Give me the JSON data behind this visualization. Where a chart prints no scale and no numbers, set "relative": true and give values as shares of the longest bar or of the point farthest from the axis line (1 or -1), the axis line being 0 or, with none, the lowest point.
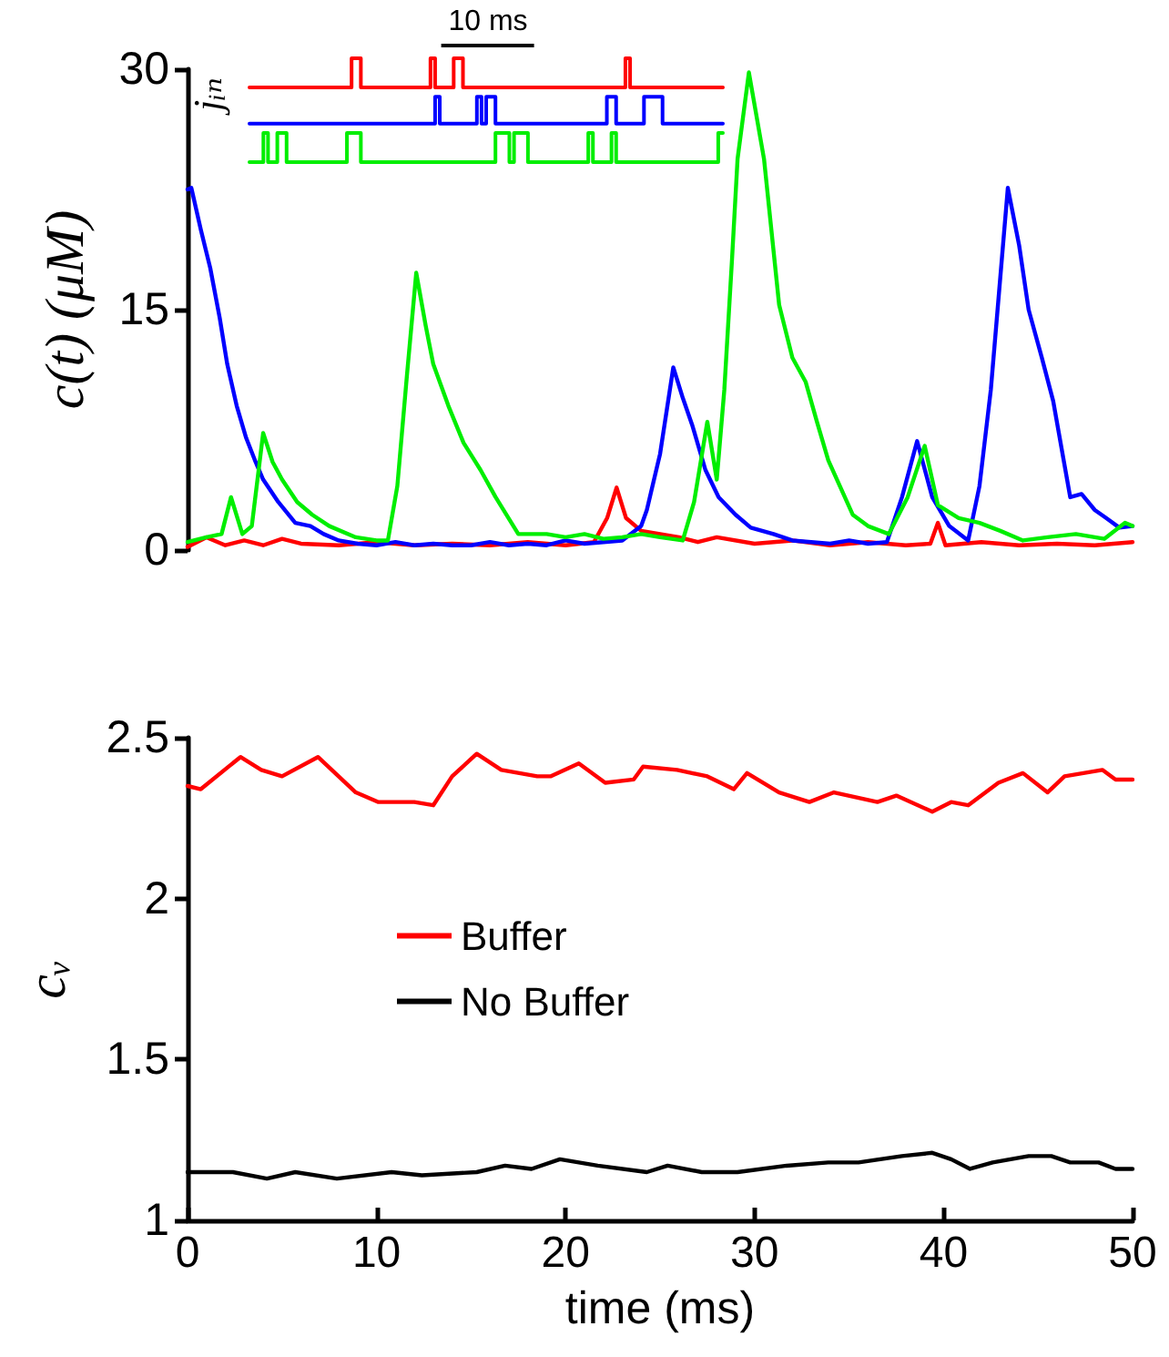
{
  "chart_data": [
    {
      "type": "line",
      "ylabel": "c(t) (μM)",
      "xlim": [
        0,
        50
      ],
      "ylim": [
        0,
        30
      ],
      "yticks": [
        0,
        15,
        30
      ],
      "tick_labels": "y",
      "marker": "none",
      "series": [
        {
          "color": "#ff0000",
          "x": [
            0,
            1,
            2,
            3,
            4,
            5,
            6,
            8,
            10,
            12,
            14,
            16,
            18,
            20,
            21.5,
            22.2,
            22.7,
            23.2,
            24,
            25,
            26,
            27,
            28,
            30,
            32,
            34,
            36,
            38,
            39.3,
            39.7,
            40.1,
            42,
            44,
            46,
            48,
            50
          ],
          "values": [
            0.2,
            0.8,
            0.3,
            0.6,
            0.3,
            0.7,
            0.4,
            0.3,
            0.5,
            0.3,
            0.4,
            0.3,
            0.5,
            0.3,
            0.5,
            2,
            3.9,
            2,
            1.2,
            1,
            0.8,
            0.5,
            0.8,
            0.4,
            0.6,
            0.3,
            0.5,
            0.3,
            0.4,
            1.7,
            0.3,
            0.5,
            0.3,
            0.4,
            0.3,
            0.5
          ]
        },
        {
          "color": "#0000ff",
          "x": [
            0,
            0.2,
            0.7,
            1.2,
            1.7,
            2.1,
            2.6,
            3.1,
            3.6,
            4,
            4.8,
            5.7,
            6.5,
            7.2,
            8,
            9,
            10,
            11,
            12,
            13,
            14,
            15,
            16,
            17,
            18,
            19,
            20,
            21,
            22,
            23,
            24,
            24.3,
            25,
            25.7,
            26.2,
            26.7,
            27.4,
            28.1,
            29,
            29.8,
            31,
            32,
            33,
            34,
            35,
            36,
            37,
            37.8,
            38.6,
            39.4,
            40.3,
            41.3,
            41.9,
            42.5,
            43,
            43.4,
            44,
            44.5,
            45.2,
            45.8,
            46.7,
            47.3,
            48,
            48.6,
            49.3,
            50
          ],
          "values": [
            22.5,
            22.6,
            20,
            17.6,
            14.5,
            11.6,
            9,
            7,
            5.5,
            4.4,
            3,
            1.7,
            1.5,
            1,
            0.6,
            0.4,
            0.3,
            0.5,
            0.3,
            0.4,
            0.3,
            0.3,
            0.5,
            0.3,
            0.4,
            0.3,
            0.6,
            0.4,
            0.5,
            0.6,
            1.5,
            2.5,
            6,
            11.4,
            9.5,
            7.8,
            5,
            3.3,
            2.2,
            1.4,
            1,
            0.6,
            0.5,
            0.4,
            0.6,
            0.4,
            0.5,
            3.3,
            6.8,
            3.3,
            1.5,
            0.6,
            4,
            10,
            17,
            22.6,
            19,
            15,
            12,
            9.3,
            3.3,
            3.5,
            2.5,
            2,
            1.4,
            1.5
          ]
        },
        {
          "color": "#00ee00",
          "x": [
            0,
            1,
            1.8,
            2.3,
            2.9,
            3.4,
            4,
            4.5,
            5,
            5.8,
            6.6,
            7.5,
            8.9,
            10,
            10.6,
            11.1,
            11.6,
            12.1,
            12.6,
            13,
            13.8,
            14.6,
            15.5,
            16.3,
            17.5,
            19,
            20,
            21,
            22,
            23,
            24,
            25,
            26.2,
            26.8,
            27.5,
            28,
            28.4,
            28.8,
            29.1,
            29.7,
            30.5,
            31.3,
            32,
            32.7,
            33.3,
            33.9,
            35.2,
            36,
            37.1,
            38.1,
            39,
            39.7,
            40.8,
            41.9,
            43,
            44.2,
            45.5,
            47,
            48.5,
            49.6,
            50
          ],
          "values": [
            0.5,
            0.8,
            1,
            3.3,
            1,
            1.5,
            7.3,
            5.5,
            4.4,
            3,
            2.2,
            1.5,
            0.8,
            0.6,
            0.6,
            4,
            10.8,
            17.3,
            14,
            11.6,
            9,
            6.7,
            5,
            3.3,
            1,
            1,
            0.8,
            1,
            0.7,
            0.8,
            1,
            0.8,
            0.6,
            3,
            8,
            4.4,
            10,
            18,
            24.4,
            29.8,
            24.4,
            15.3,
            12,
            10.5,
            8,
            5.6,
            2.2,
            1.5,
            1,
            3.3,
            6.5,
            2.8,
            2,
            1.7,
            1.2,
            0.6,
            0.8,
            1,
            0.7,
            1.7,
            1.5
          ]
        }
      ]
    },
    {
      "type": "step",
      "ylabel": "jᵢₙ",
      "relative": true,
      "tick_labels": false,
      "marker": "none",
      "annotations": [
        "10 ms"
      ],
      "categories": [
        null,
        null,
        null,
        null,
        null,
        null,
        null,
        null,
        null,
        null,
        null,
        null,
        null,
        null,
        null,
        null,
        null,
        null,
        null,
        null,
        null,
        null,
        null,
        null,
        null,
        null,
        null,
        null,
        null,
        null,
        null,
        null,
        null,
        null,
        null,
        null,
        null,
        null,
        null,
        null,
        null,
        null,
        null,
        null,
        null,
        null,
        null,
        null,
        null,
        null,
        null,
        null,
        null,
        null,
        null,
        null,
        null,
        null,
        null,
        null,
        null,
        null,
        null,
        null,
        null,
        null,
        null,
        null,
        null,
        null,
        null,
        null,
        null,
        null,
        null,
        null,
        null,
        null,
        null,
        null,
        null,
        null,
        null,
        null,
        null,
        null,
        null,
        null,
        null,
        null,
        null,
        null,
        null,
        null,
        null,
        null,
        null,
        null,
        null,
        null,
        null,
        null,
        null
      ],
      "series": [
        {
          "color": "#ff0000",
          "values": [
            0.72,
            0.72,
            0.72,
            0.72,
            0.72,
            0.72,
            0.72,
            0.72,
            0.72,
            0.72,
            0.72,
            0.72,
            0.72,
            0.72,
            0.72,
            0.72,
            0.72,
            0.72,
            0.72,
            0.72,
            0.72,
            0.72,
            1,
            1,
            0.72,
            0.72,
            0.72,
            0.72,
            0.72,
            0.72,
            0.72,
            0.72,
            0.72,
            0.72,
            0.72,
            0.72,
            0.72,
            0.72,
            0.72,
            1,
            0.72,
            0.72,
            0.72,
            0.72,
            1,
            1,
            0.72,
            0.72,
            0.72,
            0.72,
            0.72,
            0.72,
            0.72,
            0.72,
            0.72,
            0.72,
            0.72,
            0.72,
            0.72,
            0.72,
            0.72,
            0.72,
            0.72,
            0.72,
            0.72,
            0.72,
            0.72,
            0.72,
            0.72,
            0.72,
            0.72,
            0.72,
            0.72,
            0.72,
            0.72,
            0.72,
            0.72,
            0.72,
            0.72,
            0.72,
            0.72,
            1,
            0.72,
            0.72,
            0.72,
            0.72,
            0.72,
            0.72,
            0.72,
            0.72,
            0.72,
            0.72,
            0.72,
            0.72,
            0.72,
            0.72,
            0.72,
            0.72,
            0.72,
            0.72,
            0.72,
            0.72,
            0.72
          ]
        },
        {
          "color": "#0000ff",
          "values": [
            0.37,
            0.37,
            0.37,
            0.37,
            0.37,
            0.37,
            0.37,
            0.37,
            0.37,
            0.37,
            0.37,
            0.37,
            0.37,
            0.37,
            0.37,
            0.37,
            0.37,
            0.37,
            0.37,
            0.37,
            0.37,
            0.37,
            0.37,
            0.37,
            0.37,
            0.37,
            0.37,
            0.37,
            0.37,
            0.37,
            0.37,
            0.37,
            0.37,
            0.37,
            0.37,
            0.37,
            0.37,
            0.37,
            0.37,
            0.37,
            0.63,
            0.37,
            0.37,
            0.37,
            0.37,
            0.37,
            0.37,
            0.37,
            0.37,
            0.63,
            0.37,
            0.63,
            0.63,
            0.37,
            0.37,
            0.37,
            0.37,
            0.37,
            0.37,
            0.37,
            0.37,
            0.37,
            0.37,
            0.37,
            0.37,
            0.37,
            0.37,
            0.37,
            0.37,
            0.37,
            0.37,
            0.37,
            0.37,
            0.37,
            0.37,
            0.37,
            0.37,
            0.63,
            0.63,
            0.37,
            0.37,
            0.37,
            0.37,
            0.37,
            0.37,
            0.63,
            0.63,
            0.63,
            0.63,
            0.37,
            0.37,
            0.37,
            0.37,
            0.37,
            0.37,
            0.37,
            0.37,
            0.37,
            0.37,
            0.37,
            0.37,
            0.37,
            0.37
          ]
        },
        {
          "color": "#00ee00",
          "values": [
            0,
            0,
            0,
            0.28,
            0,
            0,
            0.28,
            0.28,
            0,
            0,
            0,
            0,
            0,
            0,
            0,
            0,
            0,
            0,
            0,
            0,
            0,
            0.28,
            0.28,
            0.28,
            0,
            0,
            0,
            0,
            0,
            0,
            0,
            0,
            0,
            0,
            0,
            0,
            0,
            0,
            0,
            0,
            0,
            0,
            0,
            0,
            0,
            0,
            0,
            0,
            0,
            0,
            0,
            0,
            0,
            0.28,
            0.28,
            0.28,
            0,
            0.28,
            0.28,
            0.28,
            0,
            0,
            0,
            0,
            0,
            0,
            0,
            0,
            0,
            0,
            0,
            0,
            0,
            0.28,
            0,
            0,
            0,
            0,
            0.28,
            0,
            0,
            0,
            0,
            0,
            0,
            0,
            0,
            0,
            0,
            0,
            0,
            0,
            0,
            0,
            0,
            0,
            0,
            0,
            0,
            0,
            0,
            0.28,
            0.28
          ]
        }
      ]
    },
    {
      "type": "line",
      "xlabel": "time (ms)",
      "ylabel": "cᵥ",
      "xlim": [
        0,
        50
      ],
      "xticks": [
        0,
        10,
        20,
        30,
        40,
        50
      ],
      "ylim": [
        1,
        2.5
      ],
      "yticks": [
        1,
        1.5,
        2,
        2.5
      ],
      "legend": "left",
      "marker": "none",
      "series": [
        {
          "name": "Buffer",
          "color": "#ff0000",
          "x": [
            0,
            0.7,
            2.8,
            3.9,
            5,
            6.9,
            8.9,
            10.1,
            12,
            13,
            14,
            15.3,
            16.6,
            18.5,
            19.2,
            20.7,
            22.1,
            23.6,
            24.1,
            25.9,
            27.5,
            28.9,
            29.6,
            31.3,
            32.9,
            34.2,
            36.5,
            37.5,
            39.4,
            40.4,
            41.3,
            42.9,
            44.2,
            45.5,
            46.4,
            48.4,
            49.1,
            50
          ],
          "values": [
            2.35,
            2.34,
            2.44,
            2.4,
            2.38,
            2.44,
            2.33,
            2.3,
            2.3,
            2.29,
            2.38,
            2.45,
            2.4,
            2.38,
            2.38,
            2.42,
            2.36,
            2.37,
            2.41,
            2.4,
            2.38,
            2.34,
            2.39,
            2.33,
            2.3,
            2.33,
            2.3,
            2.32,
            2.27,
            2.3,
            2.29,
            2.36,
            2.39,
            2.33,
            2.38,
            2.4,
            2.37,
            2.37
          ]
        },
        {
          "name": "No Buffer",
          "color": "#000000",
          "x": [
            0,
            2.4,
            4.2,
            5.7,
            7.9,
            10.8,
            12.4,
            15.3,
            16.8,
            18.2,
            19.7,
            21.7,
            24.3,
            25.4,
            27.2,
            29.1,
            31.7,
            33.9,
            35.5,
            37.8,
            39.4,
            40.4,
            41.4,
            42.6,
            44.5,
            45.7,
            46.7,
            48.2,
            49.1,
            50
          ],
          "values": [
            1.15,
            1.15,
            1.13,
            1.15,
            1.13,
            1.15,
            1.14,
            1.15,
            1.17,
            1.16,
            1.19,
            1.17,
            1.15,
            1.17,
            1.15,
            1.15,
            1.17,
            1.18,
            1.18,
            1.2,
            1.21,
            1.19,
            1.16,
            1.18,
            1.2,
            1.2,
            1.18,
            1.18,
            1.16,
            1.16
          ]
        }
      ]
    }
  ]
}
